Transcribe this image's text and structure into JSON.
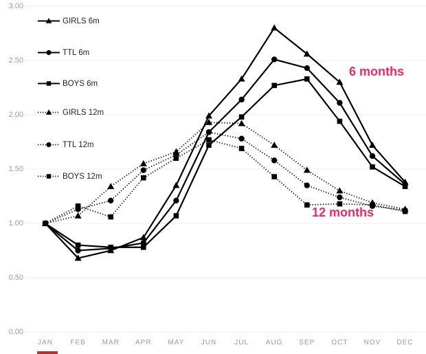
{
  "chart_data": {
    "type": "line",
    "title": "",
    "xlabel": "",
    "ylabel": "",
    "ylim": [
      0,
      3
    ],
    "grid": "horizontal",
    "legend_position": "top-left-inside",
    "categories": [
      "JAN",
      "FEB",
      "MAR",
      "APR",
      "MAY",
      "JUN",
      "JUL",
      "AUG",
      "SEP",
      "OCT",
      "NOV",
      "DEC"
    ],
    "y_ticks": [
      "3.00",
      "2.50",
      "2.00",
      "1.50",
      "1.00",
      "0.50",
      "0.00"
    ],
    "series": [
      {
        "name": "GIRLS 6m",
        "marker": "triangle",
        "line": "solid",
        "values": [
          1.0,
          0.68,
          0.75,
          0.87,
          1.35,
          1.99,
          2.33,
          2.8,
          2.56,
          2.3,
          1.72,
          1.38
        ]
      },
      {
        "name": "TTL 6m",
        "marker": "circle",
        "line": "solid",
        "values": [
          1.0,
          0.75,
          0.77,
          0.82,
          1.21,
          1.84,
          2.14,
          2.51,
          2.43,
          2.11,
          1.62,
          1.36
        ]
      },
      {
        "name": "BOYS 6m",
        "marker": "square",
        "line": "solid",
        "values": [
          1.0,
          0.8,
          0.78,
          0.78,
          1.07,
          1.72,
          1.98,
          2.27,
          2.33,
          1.94,
          1.52,
          1.34
        ]
      },
      {
        "name": "GIRLS 12m",
        "marker": "triangle",
        "line": "dotted",
        "values": [
          1.0,
          1.07,
          1.34,
          1.55,
          1.66,
          1.93,
          1.92,
          1.72,
          1.49,
          1.3,
          1.19,
          1.13
        ]
      },
      {
        "name": "TTL 12m",
        "marker": "circle",
        "line": "dotted",
        "values": [
          1.0,
          1.13,
          1.21,
          1.49,
          1.63,
          1.84,
          1.78,
          1.58,
          1.35,
          1.24,
          1.16,
          1.12
        ]
      },
      {
        "name": "BOYS 12m",
        "marker": "square",
        "line": "dotted",
        "values": [
          1.0,
          1.16,
          1.06,
          1.42,
          1.6,
          1.77,
          1.69,
          1.43,
          1.17,
          1.18,
          1.17,
          1.11
        ]
      }
    ],
    "annotations": [
      {
        "text": "6 months",
        "color": "#ED2A68"
      },
      {
        "text": "12 months",
        "color": "#ED2A68"
      }
    ],
    "colors": {
      "line": "#000000",
      "grid": "#ebebeb",
      "axis_text": "#9b9b9b",
      "legend_text": "#1f1f1f",
      "annotation": "#ED2A68",
      "background": "#ffffff",
      "bottom_strip": "#A83838"
    }
  }
}
